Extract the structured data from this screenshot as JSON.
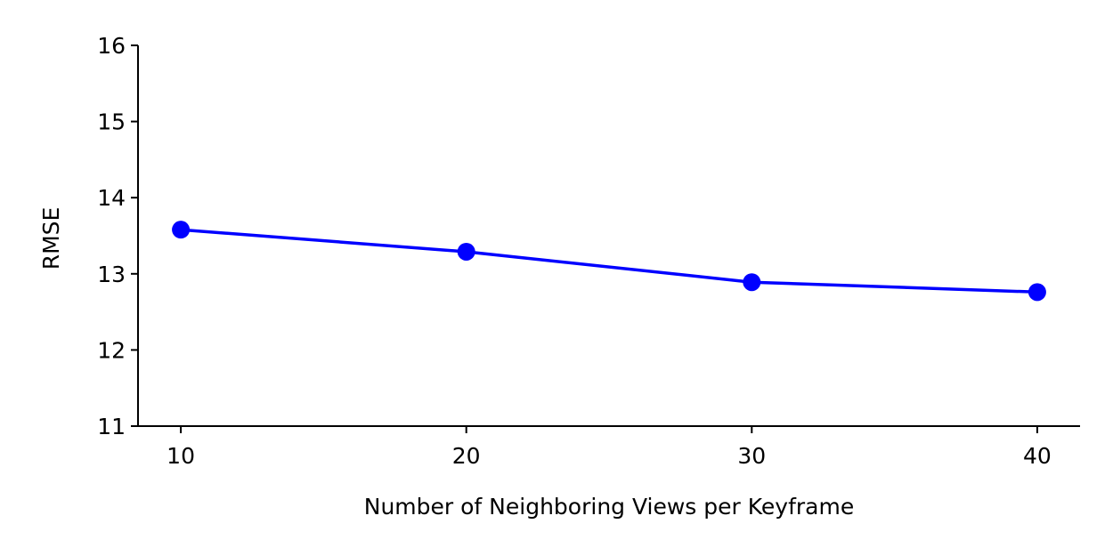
{
  "chart_data": {
    "type": "line",
    "title": "",
    "xlabel": "Number of Neighboring Views per Keyframe",
    "ylabel": "RMSE",
    "x": [
      10,
      20,
      30,
      40
    ],
    "series": [
      {
        "values": [
          13.58,
          13.29,
          12.89,
          12.76
        ],
        "color": "#0000ff",
        "marker": "circle"
      }
    ],
    "xticks": [
      10,
      20,
      30,
      40
    ],
    "yticks": [
      11,
      12,
      13,
      14,
      15,
      16
    ],
    "xlim": [
      8.5,
      41.5
    ],
    "ylim": [
      11,
      16
    ],
    "grid": false,
    "legend": "none"
  }
}
